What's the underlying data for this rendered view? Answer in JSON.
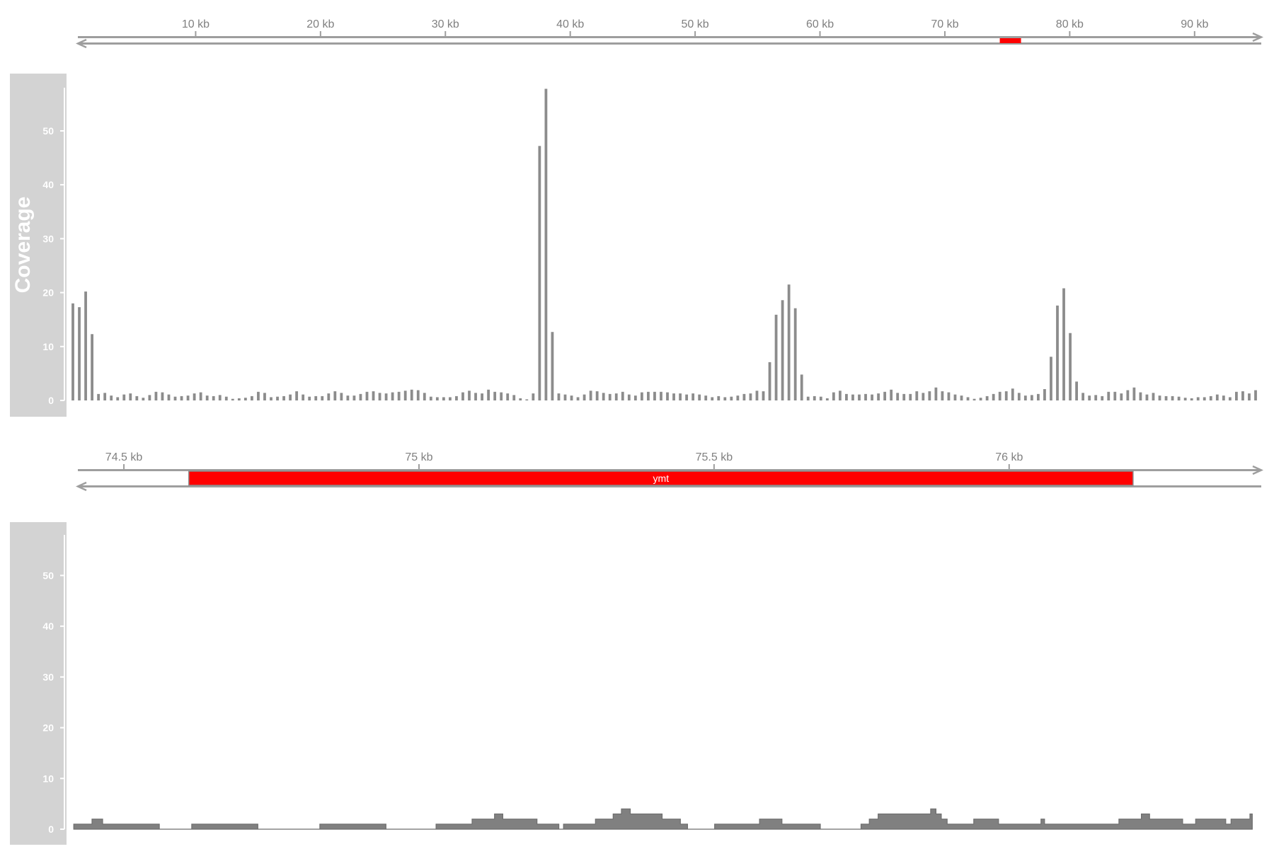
{
  "colors": {
    "axis": "#9e9e9e",
    "bar": "#8c8c8c",
    "area": "#808080",
    "gene": "#ff0000",
    "panel": "#d3d3d3"
  },
  "chart_data": [
    {
      "type": "line",
      "role": "overview-ruler",
      "x_unit": "kb",
      "xlim": [
        0,
        95
      ],
      "ticks": [
        {
          "value": 10,
          "label": "10 kb"
        },
        {
          "value": 20,
          "label": "20 kb"
        },
        {
          "value": 30,
          "label": "30 kb"
        },
        {
          "value": 40,
          "label": "40 kb"
        },
        {
          "value": 50,
          "label": "50 kb"
        },
        {
          "value": 60,
          "label": "60 kb"
        },
        {
          "value": 70,
          "label": "70 kb"
        },
        {
          "value": 80,
          "label": "80 kb"
        },
        {
          "value": 90,
          "label": "90 kb"
        }
      ],
      "highlight": [
        74.4,
        76.1
      ]
    },
    {
      "type": "bar",
      "role": "coverage-overview",
      "ylabel": "Coverage",
      "xlim": [
        0,
        95
      ],
      "ylim": [
        0,
        58
      ],
      "yticks": [
        0,
        10,
        20,
        30,
        40,
        50
      ],
      "values": [
        18,
        17.3,
        20.2,
        12.3,
        1.2,
        1.4,
        0.9,
        0.6,
        1.1,
        1.3,
        0.8,
        0.5,
        1,
        1.6,
        1.5,
        1.1,
        0.7,
        0.8,
        0.9,
        1.3,
        1.5,
        0.9,
        0.8,
        1,
        0.7,
        0.3,
        0.4,
        0.5,
        0.8,
        1.6,
        1.4,
        0.6,
        0.7,
        0.8,
        1.1,
        1.7,
        1.1,
        0.7,
        0.8,
        0.8,
        1.3,
        1.7,
        1.4,
        0.9,
        0.9,
        1.2,
        1.6,
        1.7,
        1.4,
        1.3,
        1.5,
        1.6,
        1.8,
        2,
        1.9,
        1.4,
        0.7,
        0.6,
        0.6,
        0.6,
        0.8,
        1.5,
        1.8,
        1.4,
        1.3,
        2,
        1.6,
        1.5,
        1.3,
        1,
        0.4,
        0.2,
        1.3,
        47.2,
        57.8,
        12.7,
        1.3,
        1.1,
        0.9,
        0.6,
        1.1,
        1.8,
        1.7,
        1.4,
        1.2,
        1.3,
        1.6,
        1.1,
        0.9,
        1.5,
        1.6,
        1.6,
        1.6,
        1.5,
        1.3,
        1.3,
        1.1,
        1.3,
        1.1,
        0.9,
        0.6,
        0.8,
        0.6,
        0.7,
        0.9,
        1.2,
        1.3,
        1.8,
        1.7,
        7.1,
        15.9,
        18.6,
        21.5,
        17.1,
        4.8,
        0.7,
        0.8,
        0.7,
        0.4,
        1.5,
        1.8,
        1.2,
        1.1,
        1.1,
        1.2,
        1.1,
        1.3,
        1.6,
        2,
        1.4,
        1.2,
        1.2,
        1.7,
        1.4,
        1.7,
        2.4,
        1.7,
        1.5,
        1.1,
        0.9,
        0.6,
        0.3,
        0.5,
        0.8,
        1.2,
        1.6,
        1.7,
        2.2,
        1.4,
        0.9,
        1,
        1.2,
        2.1,
        8.1,
        17.6,
        20.8,
        12.5,
        3.5,
        1.4,
        0.9,
        1,
        0.8,
        1.6,
        1.6,
        1.3,
        1.9,
        2.4,
        1.5,
        1.1,
        1.4,
        0.9,
        0.8,
        0.8,
        0.7,
        0.5,
        0.4,
        0.6,
        0.6,
        0.8,
        1.1,
        0.9,
        0.6,
        1.6,
        1.7,
        1.3,
        1.9
      ]
    },
    {
      "type": "line",
      "role": "zoom-ruler",
      "x_unit": "kb",
      "xlim": [
        74.41,
        76.42
      ],
      "ticks": [
        {
          "value": 74.5,
          "label": "74.5 kb"
        },
        {
          "value": 75,
          "label": "75 kb"
        },
        {
          "value": 75.5,
          "label": "75.5 kb"
        },
        {
          "value": 76,
          "label": "76 kb"
        }
      ],
      "gene": {
        "name": "ymt",
        "start": 74.61,
        "end": 76.21
      }
    },
    {
      "type": "area",
      "role": "coverage-zoom",
      "xlim": [
        74.41,
        76.42
      ],
      "ylim": [
        0,
        58
      ],
      "yticks": [
        0,
        10,
        20,
        30,
        40,
        50
      ],
      "steps": [
        [
          74.415,
          1
        ],
        [
          74.446,
          2
        ],
        [
          74.464,
          1
        ],
        [
          74.56,
          0
        ],
        [
          74.615,
          1
        ],
        [
          74.727,
          0
        ],
        [
          74.832,
          1
        ],
        [
          74.944,
          0
        ],
        [
          75.029,
          1
        ],
        [
          75.09,
          2
        ],
        [
          75.128,
          3
        ],
        [
          75.142,
          2
        ],
        [
          75.2,
          1
        ],
        [
          75.237,
          0
        ],
        [
          75.245,
          1
        ],
        [
          75.299,
          2
        ],
        [
          75.329,
          3
        ],
        [
          75.343,
          4
        ],
        [
          75.358,
          3
        ],
        [
          75.412,
          2
        ],
        [
          75.443,
          1
        ],
        [
          75.455,
          0
        ],
        [
          75.501,
          1
        ],
        [
          75.577,
          2
        ],
        [
          75.615,
          1
        ],
        [
          75.68,
          0
        ],
        [
          75.749,
          1
        ],
        [
          75.763,
          2
        ],
        [
          75.778,
          3
        ],
        [
          75.867,
          4
        ],
        [
          75.876,
          3
        ],
        [
          75.885,
          2
        ],
        [
          75.895,
          1
        ],
        [
          75.94,
          2
        ],
        [
          75.982,
          1
        ],
        [
          76.054,
          2
        ],
        [
          76.06,
          1
        ],
        [
          76.186,
          2
        ],
        [
          76.224,
          3
        ],
        [
          76.238,
          2
        ],
        [
          76.294,
          1
        ],
        [
          76.316,
          2
        ],
        [
          76.367,
          1
        ],
        [
          76.376,
          2
        ],
        [
          76.408,
          3
        ],
        [
          76.412,
          0
        ]
      ]
    }
  ]
}
